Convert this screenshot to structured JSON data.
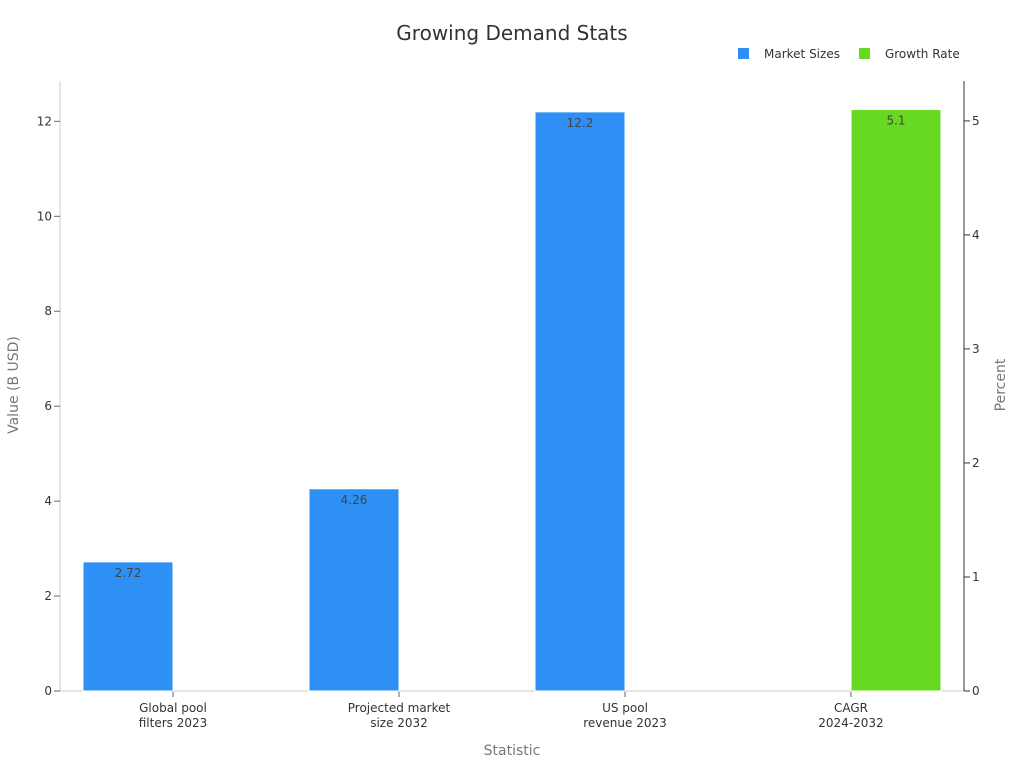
{
  "chart_data": {
    "type": "bar",
    "title": "Growing Demand Stats",
    "xlabel": "Statistic",
    "ylabel": "Value (B USD)",
    "y2label": "Percent",
    "categories": [
      [
        "Global pool",
        "filters 2023"
      ],
      [
        "Projected market",
        "size 2032"
      ],
      [
        "US pool",
        "revenue 2023"
      ],
      [
        "CAGR",
        "2024-2032"
      ]
    ],
    "series": [
      {
        "name": "Market Sizes",
        "axis": "left",
        "color": "#2e90f5",
        "values": [
          2.72,
          4.26,
          12.2,
          null
        ]
      },
      {
        "name": "Growth Rate",
        "axis": "right",
        "color": "#67d923",
        "values": [
          null,
          null,
          null,
          5.1
        ]
      }
    ],
    "ylim": [
      0,
      12.85
    ],
    "yticks": [
      0,
      2,
      4,
      6,
      8,
      10,
      12
    ],
    "y2lim": [
      0,
      5.35
    ],
    "y2ticks": [
      0,
      1,
      2,
      3,
      4,
      5
    ],
    "legend_position": "top-right",
    "grid": false
  }
}
